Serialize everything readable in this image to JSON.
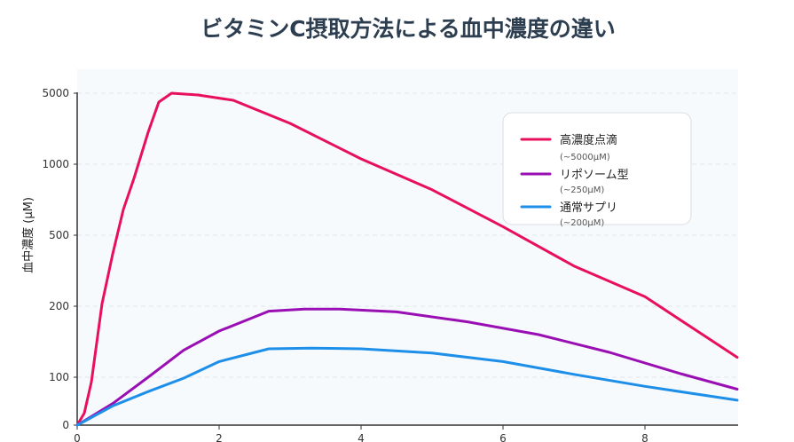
{
  "chart_data": {
    "type": "line",
    "title": "ビタミンC摂取方法による血中濃度の違い",
    "xlabel": "",
    "ylabel": "血中濃度 (μM)",
    "xlim": [
      0,
      9.3
    ],
    "xticks": [
      "0",
      "2",
      "4",
      "6",
      "8"
    ],
    "yticks": [
      "0",
      "100",
      "200",
      "500",
      "1000",
      "5000"
    ],
    "y_scale": "piecewise (non-linear) axis with ticks 0, 100, 200, 500, 1000, 5000",
    "grid": "horizontal dashed",
    "legend_position": "top-right",
    "series": [
      {
        "name": "高濃度点滴",
        "note": "(~5000μM)",
        "color": "#e8105c",
        "points": [
          [
            0,
            0
          ],
          [
            0.1,
            25
          ],
          [
            0.2,
            90
          ],
          [
            0.35,
            210
          ],
          [
            0.5,
            420
          ],
          [
            0.65,
            680
          ],
          [
            0.8,
            900
          ],
          [
            1.0,
            2800
          ],
          [
            1.15,
            4500
          ],
          [
            1.33,
            5000
          ],
          [
            1.7,
            4900
          ],
          [
            2.2,
            4600
          ],
          [
            3.0,
            3300
          ],
          [
            4.0,
            1300
          ],
          [
            5.0,
            820
          ],
          [
            6.0,
            560
          ],
          [
            7.0,
            370
          ],
          [
            8.0,
            240
          ],
          [
            9.3,
            128
          ]
        ]
      },
      {
        "name": "リポソーム型",
        "note": "(~250μM)",
        "color": "#9a0fb3",
        "points": [
          [
            0,
            0
          ],
          [
            0.5,
            45
          ],
          [
            1.0,
            100
          ],
          [
            1.5,
            138
          ],
          [
            2.0,
            165
          ],
          [
            2.7,
            193
          ],
          [
            3.2,
            196
          ],
          [
            3.7,
            196
          ],
          [
            4.5,
            192
          ],
          [
            5.5,
            178
          ],
          [
            6.5,
            160
          ],
          [
            7.5,
            135
          ],
          [
            8.5,
            105
          ],
          [
            9.3,
            75
          ]
        ]
      },
      {
        "name": "通常サプリ",
        "note": "(~200μM)",
        "color": "#1e8fe8",
        "points": [
          [
            0,
            0
          ],
          [
            0.5,
            40
          ],
          [
            1.0,
            70
          ],
          [
            1.5,
            98
          ],
          [
            2.0,
            122
          ],
          [
            2.7,
            140
          ],
          [
            3.3,
            141
          ],
          [
            4.0,
            140
          ],
          [
            5.0,
            134
          ],
          [
            6.0,
            122
          ],
          [
            7.0,
            104
          ],
          [
            8.0,
            81
          ],
          [
            9.3,
            52
          ]
        ]
      }
    ]
  }
}
